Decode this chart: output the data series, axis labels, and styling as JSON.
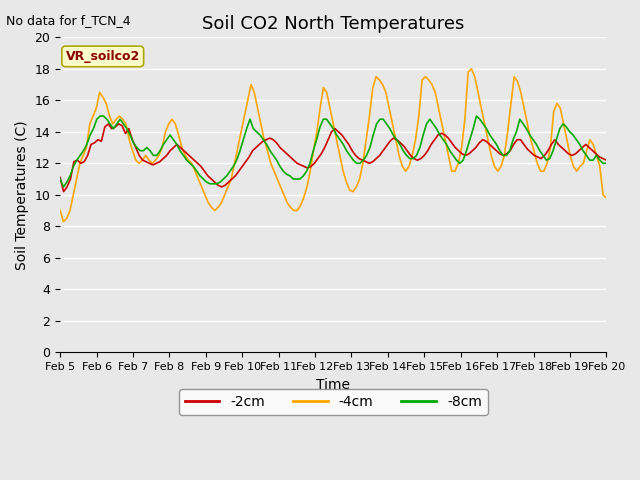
{
  "title": "Soil CO2 North Temperatures",
  "no_data_label": "No data for f_TCN_4",
  "vr_label": "VR_soilco2",
  "xlabel": "Time",
  "ylabel": "Soil Temperatures (C)",
  "xlim": [
    0,
    15
  ],
  "ylim": [
    0,
    20
  ],
  "yticks": [
    0,
    2,
    4,
    6,
    8,
    10,
    12,
    14,
    16,
    18,
    20
  ],
  "xtick_labels": [
    "Feb 5",
    "Feb 6",
    "Feb 7",
    "Feb 8",
    "Feb 9",
    "Feb 10",
    "Feb 11",
    "Feb 12",
    "Feb 13",
    "Feb 14",
    "Feb 15",
    "Feb 16",
    "Feb 17",
    "Feb 18",
    "Feb 19",
    "Feb 20"
  ],
  "background_color": "#e8e8e8",
  "plot_bg_color": "#e8e8e8",
  "grid_color": "#ffffff",
  "line_2cm_color": "#cc0000",
  "line_4cm_color": "#ffa500",
  "line_8cm_color": "#00aa00",
  "line_width": 1.2,
  "legend_labels": [
    "-2cm",
    "-4cm",
    "-8cm"
  ],
  "t_2cm": [
    11.1,
    10.2,
    10.5,
    11.0,
    12.1,
    12.2,
    12.0,
    12.1,
    12.5,
    13.2,
    13.3,
    13.5,
    13.4,
    14.3,
    14.5,
    14.2,
    14.3,
    14.5,
    14.4,
    13.9,
    14.2,
    13.5,
    13.0,
    12.5,
    12.2,
    12.1,
    12.0,
    11.9,
    12.0,
    12.1,
    12.3,
    12.5,
    12.8,
    13.0,
    13.2,
    13.0,
    12.8,
    12.6,
    12.4,
    12.2,
    12.0,
    11.8,
    11.5,
    11.2,
    11.0,
    10.8,
    10.6,
    10.5,
    10.6,
    10.8,
    11.0,
    11.2,
    11.5,
    11.8,
    12.1,
    12.4,
    12.8,
    13.0,
    13.2,
    13.4,
    13.5,
    13.6,
    13.5,
    13.3,
    13.0,
    12.8,
    12.6,
    12.4,
    12.2,
    12.0,
    11.9,
    11.8,
    11.7,
    11.8,
    12.0,
    12.3,
    12.6,
    13.0,
    13.5,
    14.0,
    14.2,
    14.0,
    13.8,
    13.5,
    13.2,
    12.8,
    12.5,
    12.3,
    12.2,
    12.1,
    12.0,
    12.1,
    12.3,
    12.5,
    12.8,
    13.1,
    13.4,
    13.6,
    13.5,
    13.3,
    13.1,
    12.8,
    12.5,
    12.3,
    12.2,
    12.3,
    12.5,
    12.8,
    13.2,
    13.5,
    13.8,
    13.9,
    13.8,
    13.6,
    13.3,
    13.0,
    12.8,
    12.6,
    12.5,
    12.6,
    12.8,
    13.0,
    13.3,
    13.5,
    13.4,
    13.2,
    13.0,
    12.8,
    12.6,
    12.5,
    12.6,
    12.8,
    13.2,
    13.5,
    13.5,
    13.2,
    12.9,
    12.7,
    12.5,
    12.4,
    12.3,
    12.5,
    12.8,
    13.2,
    13.5,
    13.2,
    13.0,
    12.8,
    12.6,
    12.5,
    12.6,
    12.8,
    13.0,
    13.2,
    13.0,
    12.8,
    12.6,
    12.4,
    12.3,
    12.2
  ],
  "t_4cm": [
    9.0,
    8.3,
    8.5,
    9.0,
    10.0,
    11.0,
    12.0,
    12.5,
    13.0,
    14.5,
    15.0,
    15.5,
    16.5,
    16.2,
    15.8,
    15.0,
    14.5,
    14.8,
    15.0,
    14.8,
    14.5,
    13.5,
    12.8,
    12.2,
    12.0,
    12.2,
    12.5,
    12.2,
    12.0,
    12.2,
    12.5,
    13.0,
    14.0,
    14.5,
    14.8,
    14.5,
    13.8,
    13.0,
    12.5,
    12.2,
    12.0,
    11.5,
    11.0,
    10.5,
    10.0,
    9.5,
    9.2,
    9.0,
    9.2,
    9.5,
    10.0,
    10.5,
    11.0,
    12.0,
    13.0,
    14.0,
    15.0,
    16.0,
    17.0,
    16.5,
    15.5,
    14.5,
    13.5,
    12.8,
    12.0,
    11.5,
    11.0,
    10.5,
    10.0,
    9.5,
    9.2,
    9.0,
    9.0,
    9.3,
    9.8,
    10.5,
    11.5,
    12.8,
    14.0,
    15.5,
    16.8,
    16.5,
    15.5,
    14.5,
    13.5,
    12.5,
    11.5,
    10.8,
    10.3,
    10.2,
    10.5,
    11.0,
    12.0,
    13.5,
    15.0,
    16.8,
    17.5,
    17.3,
    17.0,
    16.5,
    15.5,
    14.5,
    13.5,
    12.5,
    11.8,
    11.5,
    11.8,
    12.5,
    13.5,
    15.0,
    17.3,
    17.5,
    17.3,
    17.0,
    16.5,
    15.5,
    14.5,
    13.5,
    12.5,
    11.5,
    11.5,
    12.0,
    13.0,
    14.8,
    17.8,
    18.0,
    17.5,
    16.5,
    15.5,
    14.5,
    13.5,
    12.5,
    11.8,
    11.5,
    11.8,
    12.5,
    14.0,
    15.8,
    17.5,
    17.2,
    16.5,
    15.5,
    14.5,
    13.5,
    12.8,
    12.0,
    11.5,
    11.5,
    12.0,
    13.0,
    15.3,
    15.8,
    15.5,
    14.5,
    13.5,
    12.5,
    11.8,
    11.5,
    11.8,
    12.0,
    12.8,
    13.5,
    13.2,
    12.5,
    11.8,
    10.0,
    9.8
  ],
  "t_8cm": [
    11.0,
    10.5,
    10.8,
    11.2,
    11.8,
    12.2,
    12.5,
    12.8,
    13.2,
    13.8,
    14.2,
    14.8,
    15.0,
    15.0,
    14.8,
    14.5,
    14.2,
    14.5,
    14.8,
    14.5,
    14.2,
    13.8,
    13.3,
    13.0,
    12.8,
    12.8,
    13.0,
    12.8,
    12.5,
    12.5,
    12.8,
    13.2,
    13.5,
    13.8,
    13.5,
    13.2,
    12.8,
    12.5,
    12.2,
    12.0,
    11.8,
    11.5,
    11.2,
    11.0,
    10.8,
    10.7,
    10.7,
    10.7,
    10.8,
    11.0,
    11.2,
    11.5,
    11.8,
    12.2,
    12.8,
    13.5,
    14.2,
    14.8,
    14.2,
    14.0,
    13.8,
    13.5,
    13.2,
    12.8,
    12.5,
    12.2,
    11.8,
    11.5,
    11.3,
    11.2,
    11.0,
    11.0,
    11.0,
    11.2,
    11.5,
    12.0,
    12.8,
    13.5,
    14.3,
    14.8,
    14.8,
    14.5,
    14.2,
    13.8,
    13.5,
    13.2,
    12.8,
    12.5,
    12.2,
    12.0,
    12.0,
    12.2,
    12.5,
    13.0,
    13.8,
    14.5,
    14.8,
    14.8,
    14.5,
    14.2,
    13.8,
    13.5,
    13.2,
    12.8,
    12.5,
    12.3,
    12.3,
    12.5,
    13.0,
    13.8,
    14.5,
    14.8,
    14.5,
    14.2,
    13.8,
    13.5,
    13.2,
    12.8,
    12.5,
    12.2,
    12.0,
    12.2,
    12.8,
    13.5,
    14.2,
    15.0,
    14.8,
    14.5,
    14.2,
    13.8,
    13.5,
    13.2,
    12.8,
    12.5,
    12.5,
    12.8,
    13.5,
    14.0,
    14.8,
    14.5,
    14.2,
    13.8,
    13.5,
    13.2,
    12.8,
    12.5,
    12.2,
    12.3,
    12.8,
    13.5,
    14.2,
    14.5,
    14.3,
    14.0,
    13.8,
    13.5,
    13.2,
    12.8,
    12.5,
    12.2,
    12.2,
    12.5,
    12.2,
    12.0,
    12.0
  ]
}
